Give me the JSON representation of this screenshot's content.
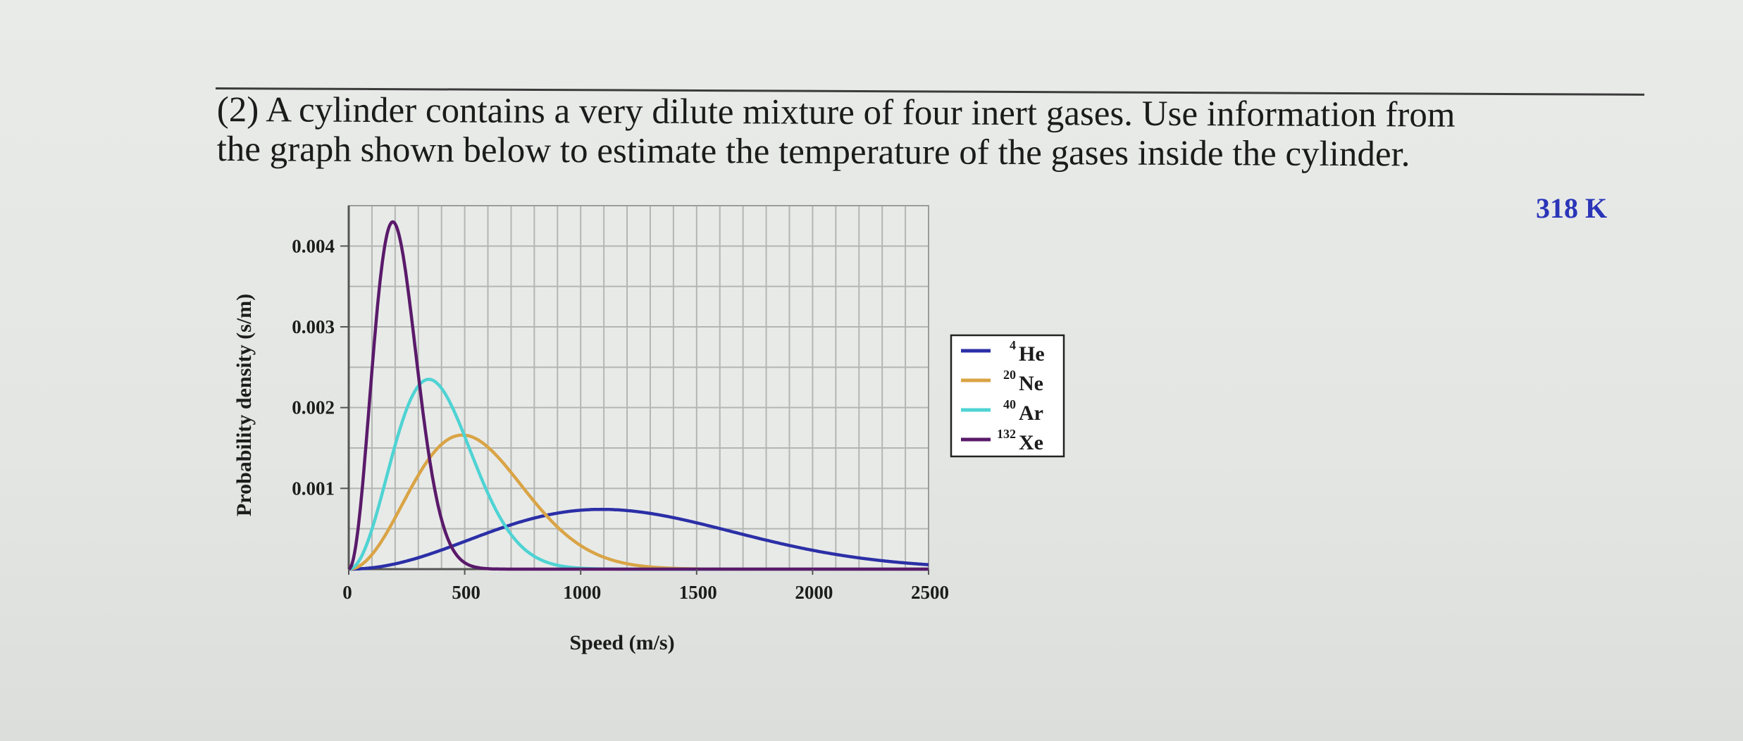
{
  "question": {
    "line1": "(2) A cylinder contains a very dilute mixture of four inert gases.  Use information from",
    "line2": "the graph shown below to estimate the temperature of the gases inside the cylinder."
  },
  "answer": "318 K",
  "chart_data": {
    "type": "line",
    "xlabel": "Speed (m/s)",
    "ylabel": "Probability density (s/m)",
    "xlim": [
      0,
      2500
    ],
    "ylim": [
      0,
      0.0045
    ],
    "x_ticks": [
      0,
      500,
      1000,
      1500,
      2000,
      2500
    ],
    "x_tick_labels": [
      "0",
      "500",
      "1000",
      "1500",
      "2000",
      "2500"
    ],
    "y_ticks": [
      0.001,
      0.002,
      0.003,
      0.004
    ],
    "y_tick_labels": [
      "0.001",
      "0.002",
      "0.003",
      "0.004"
    ],
    "grid": true,
    "legend_position": "right",
    "series": [
      {
        "name": "He",
        "mass_number": "4",
        "color": "#2b2fa6",
        "peak_x": 1090,
        "peak_y": 0.00074
      },
      {
        "name": "Ne",
        "mass_number": "20",
        "color": "#d9a446",
        "peak_x": 490,
        "peak_y": 0.00166
      },
      {
        "name": "Ar",
        "mass_number": "40",
        "color": "#4fd3d3",
        "peak_x": 345,
        "peak_y": 0.00235
      },
      {
        "name": "Xe",
        "mass_number": "132",
        "color": "#5a1a6a",
        "peak_x": 190,
        "peak_y": 0.0043
      }
    ]
  }
}
